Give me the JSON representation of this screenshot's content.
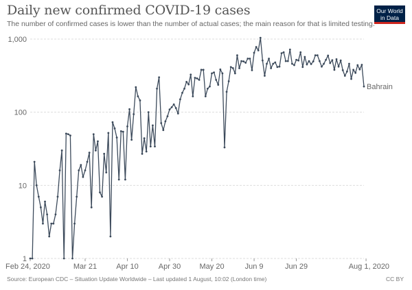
{
  "header": {
    "title": "Daily new confirmed COVID-19 cases",
    "subtitle": "The number of confirmed cases is lower than the number of actual cases; the main reason for that is limited testing.",
    "logo_line1": "Our World",
    "logo_line2": "in Data"
  },
  "footer": {
    "source": "Source: European CDC – Situation Update Worldwide – Last updated 1 August, 10:02 (London time)",
    "license": "CC BY"
  },
  "colors": {
    "line": "#3c4a5b",
    "grid": "#dddddd",
    "logo_bg": "#002147",
    "logo_accent": "#ce261e"
  },
  "chart_data": {
    "type": "line",
    "title": "Daily new confirmed COVID-19 cases",
    "y_scale": "log",
    "ylim": [
      1,
      1000
    ],
    "y_ticks": [
      1,
      10,
      100,
      1000
    ],
    "y_tick_labels": [
      "1",
      "10",
      "100",
      "1,000"
    ],
    "x_start": "2020-02-24",
    "x_end": "2020-08-01",
    "x_ticks": [
      {
        "day": 0,
        "label": "Feb 24, 2020"
      },
      {
        "day": 26,
        "label": "Mar 21"
      },
      {
        "day": 46,
        "label": "Apr 10"
      },
      {
        "day": 66,
        "label": "Apr 30"
      },
      {
        "day": 86,
        "label": "May 20"
      },
      {
        "day": 106,
        "label": "Jun 9"
      },
      {
        "day": 126,
        "label": "Jun 29"
      },
      {
        "day": 159,
        "label": "Aug 1, 2020"
      }
    ],
    "grid": true,
    "series": [
      {
        "name": "Bahrain",
        "values": [
          1,
          1,
          21,
          10,
          7,
          5,
          3,
          6,
          4,
          2,
          3,
          3,
          4,
          7,
          16,
          30,
          1,
          51,
          50,
          48,
          1,
          3,
          7,
          16,
          19,
          13,
          16,
          21,
          28,
          5,
          50,
          30,
          40,
          8,
          7,
          27,
          15,
          52,
          2,
          73,
          60,
          45,
          12,
          55,
          54,
          12,
          64,
          110,
          42,
          94,
          220,
          165,
          145,
          27,
          44,
          29,
          100,
          34,
          66,
          34,
          210,
          300,
          71,
          57,
          75,
          88,
          109,
          117,
          128,
          114,
          96,
          150,
          184,
          210,
          260,
          240,
          327,
          165,
          295,
          290,
          277,
          380,
          380,
          165,
          210,
          225,
          340,
          350,
          277,
          237,
          385,
          340,
          33,
          190,
          265,
          415,
          400,
          340,
          600,
          400,
          500,
          495,
          475,
          540,
          540,
          375,
          650,
          780,
          700,
          1040,
          510,
          315,
          460,
          540,
          400,
          460,
          480,
          415,
          420,
          640,
          660,
          500,
          500,
          720,
          460,
          440,
          520,
          510,
          660,
          415,
          570,
          450,
          500,
          455,
          495,
          600,
          600,
          500,
          420,
          460,
          520,
          595,
          470,
          515,
          380,
          530,
          420,
          510,
          375,
          315,
          360,
          460,
          285,
          380,
          345,
          440,
          385,
          445,
          225
        ]
      }
    ]
  }
}
